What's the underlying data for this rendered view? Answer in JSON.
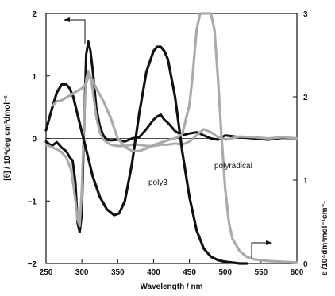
{
  "chart_data": {
    "type": "line",
    "xlabel": "Wavelength / nm",
    "ylabel_left": "[θ] / 10⁴deg cm²dmol⁻¹",
    "ylabel_right": "ε /10⁴dm³mol⁻¹cm⁻¹",
    "xlim": [
      250,
      600
    ],
    "ylim_left": [
      -2,
      2
    ],
    "ylim_right": [
      0,
      3
    ],
    "x_ticks": [
      250,
      300,
      350,
      400,
      450,
      500,
      550,
      600
    ],
    "y_ticks_left": [
      -2,
      -1,
      0,
      1,
      2
    ],
    "y_ticks_right": [
      0,
      1,
      2,
      3
    ],
    "annotations": [
      "poly3",
      "polyradical"
    ],
    "series": [
      {
        "name": "poly3",
        "axis": "left",
        "kind": "CD",
        "color": "#111111",
        "x": [
          250,
          258,
          265,
          272,
          278,
          283,
          287,
          291,
          294,
          297,
          300,
          303,
          306,
          309,
          312,
          316,
          320,
          325,
          330,
          335,
          340,
          350,
          360,
          370,
          380,
          390,
          400,
          405,
          410,
          415,
          420,
          430,
          440,
          450,
          460,
          470,
          480,
          490,
          500,
          520,
          540,
          560,
          580,
          600
        ],
        "y": [
          -0.05,
          -0.12,
          -0.06,
          -0.15,
          -0.2,
          -0.3,
          -0.35,
          -0.7,
          -1.35,
          -1.5,
          -1.2,
          0.2,
          1.35,
          1.55,
          1.4,
          1.0,
          0.5,
          0.2,
          0.05,
          -0.02,
          -0.03,
          -0.02,
          -0.05,
          0.0,
          0.02,
          0.15,
          0.3,
          0.35,
          0.38,
          0.3,
          0.25,
          0.12,
          0.05,
          0.08,
          0.1,
          0.05,
          0.0,
          -0.02,
          0.05,
          0.02,
          0.0,
          -0.02,
          0.01,
          0.0
        ]
      },
      {
        "name": "polyradical",
        "axis": "left",
        "kind": "CD",
        "color": "#aaaaaa",
        "x": [
          250,
          260,
          270,
          278,
          285,
          290,
          294,
          297,
          300,
          303,
          306,
          309,
          312,
          316,
          320,
          325,
          330,
          340,
          350,
          360,
          370,
          380,
          390,
          400,
          410,
          420,
          430,
          440,
          450,
          460,
          470,
          480,
          490,
          500,
          520,
          540,
          560,
          580,
          600
        ],
        "y": [
          -0.1,
          -0.15,
          -0.2,
          -0.3,
          -0.5,
          -0.9,
          -1.3,
          -1.4,
          -0.8,
          0.3,
          0.95,
          1.08,
          1.0,
          0.7,
          0.35,
          0.1,
          -0.02,
          -0.1,
          -0.12,
          -0.12,
          -0.1,
          -0.1,
          -0.12,
          -0.12,
          -0.1,
          -0.1,
          -0.08,
          -0.1,
          -0.05,
          0.05,
          0.15,
          0.1,
          0.02,
          -0.02,
          0.03,
          0.02,
          0.0,
          0.02,
          0.0
        ]
      },
      {
        "name": "poly3",
        "axis": "right",
        "kind": "absorption",
        "color": "#111111",
        "x": [
          250,
          258,
          265,
          272,
          278,
          283,
          288,
          295,
          305,
          315,
          325,
          335,
          345,
          352,
          360,
          370,
          380,
          390,
          400,
          405,
          410,
          415,
          420,
          430,
          440,
          450,
          460,
          470,
          480,
          490,
          500,
          510,
          520,
          530
        ],
        "y": [
          1.6,
          1.85,
          2.05,
          2.15,
          2.15,
          2.1,
          2.0,
          1.75,
          1.4,
          1.05,
          0.8,
          0.65,
          0.58,
          0.6,
          0.75,
          1.2,
          1.8,
          2.3,
          2.55,
          2.6,
          2.6,
          2.55,
          2.45,
          2.0,
          1.35,
          0.8,
          0.4,
          0.18,
          0.08,
          0.04,
          0.02,
          0.01,
          0.0,
          0.0
        ]
      },
      {
        "name": "polyradical",
        "axis": "right",
        "kind": "absorption",
        "color": "#aaaaaa",
        "x": [
          260,
          265,
          270,
          280,
          290,
          300,
          305,
          310,
          315,
          320,
          330,
          340,
          350,
          360,
          370,
          380,
          390,
          400,
          410,
          420,
          430,
          440,
          450,
          455,
          460,
          465,
          470,
          475,
          480,
          485,
          490,
          495,
          500,
          505,
          510,
          520,
          530,
          540,
          560,
          580,
          600
        ],
        "y": [
          1.9,
          1.95,
          1.95,
          2.0,
          2.05,
          2.1,
          2.15,
          2.25,
          2.2,
          2.1,
          1.95,
          1.75,
          1.5,
          1.4,
          1.35,
          1.35,
          1.38,
          1.42,
          1.45,
          1.48,
          1.5,
          1.55,
          1.9,
          2.3,
          2.8,
          3.25,
          3.45,
          3.5,
          3.3,
          2.8,
          2.2,
          1.5,
          0.9,
          0.5,
          0.3,
          0.15,
          0.08,
          0.05,
          0.03,
          0.02,
          0.01
        ]
      }
    ]
  }
}
